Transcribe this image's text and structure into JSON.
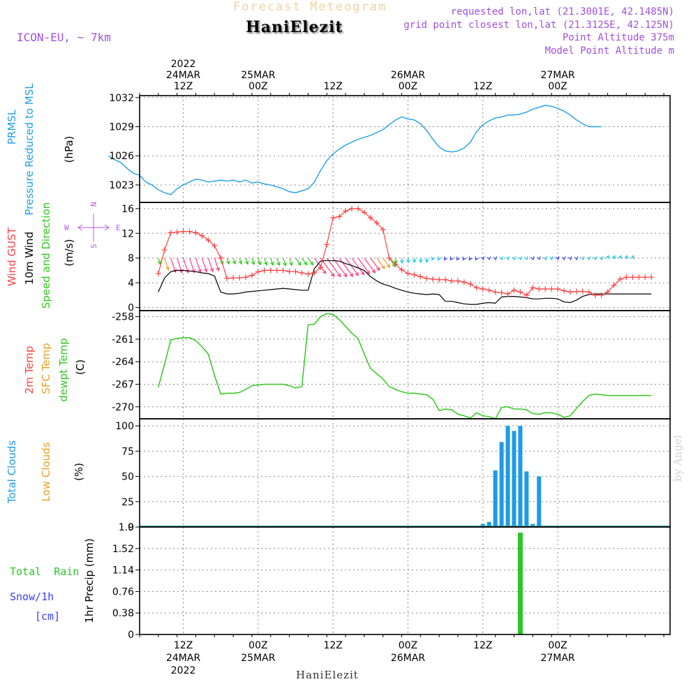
{
  "header": {
    "title": "Forecast Meteogram",
    "location": "HaniElezit",
    "model": "ICON-EU, ~ 7km",
    "requested": "requested lon,lat (21.3001E, 42.1485N)",
    "grid_point": "grid point closest lon,lat (21.3125E, 42.125N)",
    "point_altitude": "Point Altitude 375m",
    "model_altitude": "Model Point Altitude m"
  },
  "time_axis": {
    "top_labels": [
      {
        "hour": 12,
        "lines": [
          "2022",
          "24MAR",
          "12Z"
        ]
      },
      {
        "hour": 24,
        "lines": [
          "25MAR",
          "00Z"
        ]
      },
      {
        "hour": 36,
        "lines": [
          "12Z"
        ]
      },
      {
        "hour": 48,
        "lines": [
          "26MAR",
          "00Z"
        ]
      },
      {
        "hour": 60,
        "lines": [
          "12Z"
        ]
      },
      {
        "hour": 72,
        "lines": [
          "27MAR",
          "00Z"
        ]
      }
    ],
    "bottom_labels": [
      {
        "hour": 12,
        "lines": [
          "12Z",
          "24MAR",
          "2022"
        ]
      },
      {
        "hour": 24,
        "lines": [
          "00Z",
          "25MAR"
        ]
      },
      {
        "hour": 36,
        "lines": [
          "12Z"
        ]
      },
      {
        "hour": 48,
        "lines": [
          "00Z",
          "26MAR"
        ]
      },
      {
        "hour": 60,
        "lines": [
          "12Z"
        ]
      },
      {
        "hour": 72,
        "lines": [
          "00Z",
          "27MAR"
        ]
      }
    ],
    "footer": "HaniElezit",
    "credit": "by Angel"
  },
  "panels": {
    "pressure": {
      "labels": [
        "PRMSL",
        "Pressure Reduced to MSL"
      ],
      "unit": "(hPa)",
      "ticks": [
        1023,
        1026,
        1029,
        1032
      ]
    },
    "wind": {
      "labels": [
        "Wind GUST",
        "10m Wind",
        "Speed and Direction"
      ],
      "unit": "(m/s)",
      "ticks": [
        0,
        4,
        8,
        12,
        16
      ],
      "compass": {
        "n": "N",
        "s": "S",
        "w": "W",
        "e": "E"
      }
    },
    "temp": {
      "labels": [
        "2m Temp",
        "SFC Temp",
        "dewpt Temp"
      ],
      "unit": "(C)",
      "ticks": [
        -270,
        -267,
        -264,
        -261,
        -258
      ]
    },
    "clouds": {
      "labels": [
        "Total Clouds",
        "Low Clouds"
      ],
      "unit": "(%)",
      "ticks": [
        0,
        25,
        50,
        75,
        100
      ]
    },
    "precip": {
      "labels": [
        "Total  Rain",
        "Snow/1h",
        "[cm]"
      ],
      "axis_label": "1hr Precip (mm)",
      "ticks": [
        "0",
        "0.38",
        "0.76",
        "1.14",
        "1.52",
        "1.9"
      ]
    }
  },
  "colors": {
    "pressure": "#1ea0e6",
    "gust": "#ff4040",
    "wind": "#000000",
    "temp_dew": "#32c81e",
    "total_cloud": "#1e9be6",
    "low_cloud": "#e6a028",
    "rain": "#28c828",
    "snow": "#3c3cff",
    "header_title": "#f0d2a0",
    "meta": "#a050dc",
    "compass": "#b45adc",
    "credit": "#d2d2d2"
  },
  "chart_data": [
    {
      "type": "line",
      "title": "PRMSL Pressure Reduced to MSL",
      "ylabel": "(hPa)",
      "ylim": [
        1021.2,
        1032.2
      ],
      "x_unit": "hours since 24MAR 00Z",
      "series": [
        {
          "name": "PRMSL",
          "x": [
            0,
            1,
            2,
            3,
            4,
            5,
            6,
            7,
            8,
            9,
            10,
            11,
            12,
            13,
            14,
            15,
            16,
            17,
            18,
            19,
            20,
            21,
            22,
            23,
            24,
            25,
            26,
            27,
            28,
            29,
            30,
            31,
            32,
            33,
            34,
            35,
            36,
            37,
            38,
            39,
            40,
            41,
            42,
            43,
            44,
            45,
            46,
            47,
            48,
            49,
            50,
            51,
            52,
            53,
            54,
            55,
            56,
            57,
            58,
            59,
            60,
            61,
            62,
            63,
            64,
            65,
            66,
            67,
            68,
            69,
            70,
            71,
            72,
            73,
            74,
            75,
            76,
            77,
            78,
            79
          ],
          "y": [
            1026.0,
            1025.6,
            1025.3,
            1024.7,
            1024.2,
            1024.0,
            1023.3,
            1023.0,
            1022.5,
            1022.2,
            1022.0,
            1022.6,
            1023.0,
            1023.3,
            1023.6,
            1023.5,
            1023.3,
            1023.4,
            1023.5,
            1023.4,
            1023.5,
            1023.3,
            1023.5,
            1023.2,
            1023.3,
            1023.1,
            1023.0,
            1022.8,
            1022.6,
            1022.3,
            1022.2,
            1022.4,
            1022.6,
            1023.3,
            1024.5,
            1025.5,
            1026.2,
            1026.7,
            1027.1,
            1027.4,
            1027.7,
            1027.9,
            1028.1,
            1028.4,
            1028.7,
            1029.2,
            1029.7,
            1030.0,
            1029.8,
            1029.7,
            1029.3,
            1028.6,
            1027.7,
            1026.9,
            1026.5,
            1026.4,
            1026.5,
            1026.8,
            1027.4,
            1028.5,
            1029.2,
            1029.6,
            1029.9,
            1030.0,
            1030.2,
            1030.2,
            1030.3,
            1030.5,
            1030.8,
            1031.0,
            1031.2,
            1031.1,
            1030.9,
            1030.6,
            1030.2,
            1029.7,
            1029.3,
            1029.0,
            1029.0,
            1029.0
          ]
        }
      ]
    },
    {
      "type": "line",
      "title": "Wind GUST / 10m Wind Speed and Direction",
      "ylabel": "(m/s)",
      "ylim": [
        -0.5,
        17
      ],
      "x_unit": "hours since 24MAR 00Z",
      "series": [
        {
          "name": "Wind GUST",
          "x": [
            8,
            9,
            10,
            11,
            12,
            13,
            14,
            15,
            16,
            17,
            18,
            19,
            20,
            21,
            22,
            23,
            24,
            25,
            26,
            27,
            28,
            29,
            30,
            31,
            32,
            33,
            34,
            35,
            36,
            37,
            38,
            39,
            40,
            41,
            42,
            43,
            44,
            45,
            46,
            47,
            48,
            49,
            50,
            51,
            52,
            53,
            54,
            55,
            56,
            57,
            58,
            59,
            60,
            61,
            62,
            63,
            64,
            65,
            66,
            67,
            68,
            69,
            70,
            71,
            72,
            73,
            74,
            75,
            76,
            77,
            78,
            79,
            80,
            81,
            82,
            83,
            84,
            85,
            86,
            87
          ],
          "y": [
            5.5,
            9.3,
            12.1,
            12.2,
            12.3,
            12.3,
            12.1,
            11.6,
            10.9,
            10.0,
            8.0,
            4.7,
            4.8,
            4.8,
            4.9,
            5.2,
            5.8,
            6.0,
            6.0,
            6.0,
            6.0,
            5.8,
            5.8,
            5.6,
            5.4,
            5.6,
            6.5,
            10.2,
            14.5,
            14.7,
            15.6,
            16.0,
            16.0,
            15.4,
            14.5,
            13.7,
            12.6,
            8.0,
            7.0,
            6.1,
            5.5,
            5.3,
            5.0,
            4.7,
            4.6,
            4.5,
            4.5,
            4.3,
            4.3,
            4.1,
            3.8,
            3.2,
            3.0,
            2.8,
            2.5,
            2.4,
            2.2,
            2.8,
            2.5,
            2.0,
            3.2,
            3.0,
            3.0,
            3.0,
            3.0,
            2.7,
            2.5,
            2.6,
            2.6,
            2.5,
            2.0,
            2.0,
            2.5,
            3.6,
            4.6,
            4.9,
            4.9,
            4.9,
            4.9,
            4.9
          ]
        },
        {
          "name": "10m Wind",
          "x": [
            8,
            9,
            10,
            11,
            12,
            13,
            14,
            15,
            16,
            17,
            18,
            19,
            20,
            21,
            22,
            23,
            24,
            25,
            26,
            27,
            28,
            29,
            30,
            31,
            32,
            33,
            34,
            35,
            36,
            37,
            38,
            39,
            40,
            41,
            42,
            43,
            44,
            45,
            46,
            47,
            48,
            49,
            50,
            51,
            52,
            53,
            54,
            55,
            56,
            57,
            58,
            59,
            60,
            61,
            62,
            63,
            64,
            65,
            66,
            67,
            68,
            69,
            70,
            71,
            72,
            73,
            74,
            75,
            76,
            77,
            78,
            79,
            80,
            81,
            82,
            83,
            84,
            85,
            86,
            87
          ],
          "y": [
            2.5,
            4.8,
            5.8,
            6.0,
            6.0,
            5.9,
            5.8,
            5.6,
            5.5,
            5.1,
            2.5,
            2.2,
            2.2,
            2.3,
            2.5,
            2.6,
            2.7,
            2.8,
            2.9,
            3.0,
            3.1,
            3.0,
            2.9,
            2.8,
            2.8,
            6.3,
            7.5,
            7.6,
            7.6,
            7.5,
            7.1,
            6.8,
            6.4,
            6.0,
            5.0,
            4.3,
            3.8,
            3.5,
            3.1,
            2.8,
            2.5,
            2.3,
            2.2,
            2.1,
            2.2,
            2.1,
            1.0,
            1.0,
            0.8,
            0.6,
            0.5,
            0.5,
            0.7,
            0.8,
            0.7,
            1.7,
            1.8,
            1.8,
            1.7,
            1.6,
            1.4,
            1.4,
            1.5,
            1.5,
            1.4,
            0.9,
            0.8,
            1.2,
            1.8,
            2.1,
            2.2,
            2.2,
            2.2,
            2.2,
            2.2,
            2.2,
            2.2,
            2.2,
            2.2,
            2.2
          ]
        }
      ]
    },
    {
      "type": "line",
      "title": "2m Temp / SFC Temp / dewpt Temp",
      "ylabel": "(C)",
      "ylim": [
        -271.6,
        -257.2
      ],
      "x_unit": "hours since 24MAR 00Z",
      "series": [
        {
          "name": "dewpt Temp",
          "x": [
            8,
            9,
            10,
            11,
            12,
            13,
            14,
            15,
            16,
            17,
            18,
            19,
            20,
            21,
            22,
            23,
            24,
            25,
            26,
            27,
            28,
            29,
            30,
            31,
            32,
            33,
            34,
            35,
            36,
            37,
            38,
            39,
            40,
            41,
            42,
            43,
            44,
            45,
            46,
            47,
            48,
            49,
            50,
            51,
            52,
            53,
            54,
            55,
            56,
            57,
            58,
            59,
            60,
            61,
            62,
            63,
            64,
            65,
            66,
            67,
            68,
            69,
            70,
            71,
            72,
            73,
            74,
            75,
            76,
            77,
            78,
            79,
            80,
            81,
            82,
            83,
            84,
            85,
            86,
            87
          ],
          "y": [
            -267.4,
            -264.3,
            -261.1,
            -260.9,
            -260.8,
            -260.8,
            -261.2,
            -262.0,
            -263.0,
            -265.8,
            -268.3,
            -268.2,
            -268.2,
            -268.1,
            -267.7,
            -267.2,
            -267.1,
            -267.0,
            -267.0,
            -267.0,
            -267.0,
            -267.2,
            -267.5,
            -267.3,
            -259.1,
            -259.0,
            -258.0,
            -257.6,
            -257.7,
            -258.4,
            -259.3,
            -260.2,
            -260.9,
            -263.0,
            -264.9,
            -265.6,
            -266.3,
            -267.3,
            -267.7,
            -268.0,
            -268.2,
            -268.2,
            -268.3,
            -268.4,
            -269.0,
            -270.5,
            -270.3,
            -270.4,
            -271.0,
            -271.2,
            -271.5,
            -270.8,
            -271.2,
            -271.3,
            -271.6,
            -270.1,
            -270.0,
            -270.3,
            -270.3,
            -270.4,
            -270.9,
            -271.0,
            -270.8,
            -270.8,
            -271.0,
            -271.4,
            -271.2,
            -270.2,
            -269.3,
            -268.5,
            -268.3,
            -268.4,
            -268.5,
            -268.5,
            -268.5,
            -268.5,
            -268.5,
            -268.5,
            -268.5,
            -268.5
          ]
        }
      ]
    },
    {
      "type": "bar",
      "title": "Total Clouds / Low Clouds",
      "ylabel": "(%)",
      "ylim": [
        0,
        107
      ],
      "x_unit": "hours since 24MAR 00Z",
      "series": [
        {
          "name": "Total Clouds",
          "x": [
            60,
            61,
            62,
            63,
            64,
            65,
            66,
            67,
            68,
            69,
            70,
            71,
            72
          ],
          "y": [
            3,
            5,
            56,
            84,
            100,
            95,
            100,
            55,
            3,
            50,
            0,
            0,
            0
          ]
        },
        {
          "name": "Low Clouds",
          "x": [
            65
          ],
          "y": [
            1
          ]
        }
      ]
    },
    {
      "type": "bar",
      "title": "Total Rain / Snow",
      "ylabel": "1hr Precip (mm)",
      "ylim": [
        0,
        1.9
      ],
      "x_unit": "hours since 24MAR 00Z",
      "series": [
        {
          "name": "Total Rain",
          "x": [
            66
          ],
          "y": [
            1.8
          ]
        }
      ]
    }
  ]
}
